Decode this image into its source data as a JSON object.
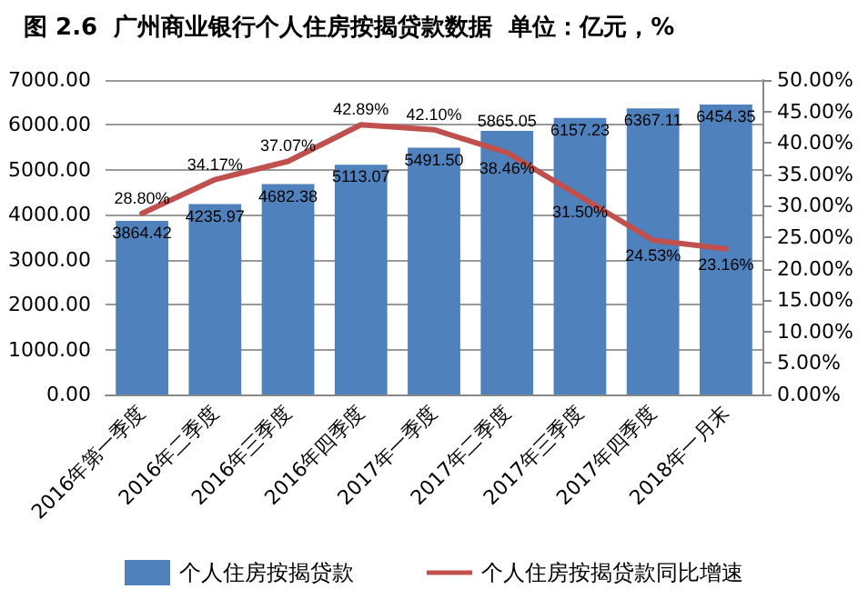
{
  "chart_data": {
    "type": "bar",
    "title": "图 2.6  广州商业银行个人住房按揭贷款数据  单位：亿元，%",
    "categories": [
      "2016年第一季度",
      "2016年二季度",
      "2016年三季度",
      "2016年四季度",
      "2017年一季度",
      "2017年二季度",
      "2017年三季度",
      "2017年四季度",
      "2018年一月末"
    ],
    "series": [
      {
        "name": "个人住房按揭贷款",
        "color": "#4f81bd",
        "values": [
          3864.42,
          4235.97,
          4682.38,
          5113.07,
          5491.5,
          5865.05,
          6157.23,
          6367.11,
          6454.35
        ],
        "value_labels": [
          "3864.42",
          "4235.97",
          "4682.38",
          "5113.07",
          "5491.50",
          "5865.05",
          "6157.23",
          "6367.11",
          "6454.35"
        ]
      },
      {
        "name": "个人住房按揭贷款同比增速",
        "type": "line",
        "axis": "y2",
        "color": "#c0504d",
        "values": [
          28.8,
          34.17,
          37.07,
          42.89,
          42.1,
          38.46,
          31.5,
          24.53,
          23.16
        ],
        "value_labels": [
          "28.80%",
          "34.17%",
          "37.07%",
          "42.89%",
          "42.10%",
          "38.46%",
          "31.50%",
          "24.53%",
          "23.16%"
        ]
      }
    ],
    "ylim": [
      0,
      7000
    ],
    "yticks": [
      {
        "value": 0,
        "label": "0.00"
      },
      {
        "value": 1000,
        "label": "1000.00"
      },
      {
        "value": 2000,
        "label": "2000.00"
      },
      {
        "value": 3000,
        "label": "3000.00"
      },
      {
        "value": 4000,
        "label": "4000.00"
      },
      {
        "value": 5000,
        "label": "5000.00"
      },
      {
        "value": 6000,
        "label": "6000.00"
      },
      {
        "value": 7000,
        "label": "7000.00"
      }
    ],
    "y2lim": [
      0,
      50
    ],
    "y2ticks": [
      {
        "value": 0,
        "label": "0.00%"
      },
      {
        "value": 5,
        "label": "5.00%"
      },
      {
        "value": 10,
        "label": "10.00%"
      },
      {
        "value": 15,
        "label": "15.00%"
      },
      {
        "value": 20,
        "label": "20.00%"
      },
      {
        "value": 25,
        "label": "25.00%"
      },
      {
        "value": 30,
        "label": "30.00%"
      },
      {
        "value": 35,
        "label": "35.00%"
      },
      {
        "value": 40,
        "label": "40.00%"
      },
      {
        "value": 45,
        "label": "45.00%"
      },
      {
        "value": 50,
        "label": "50.00%"
      }
    ],
    "grid": "y",
    "legend": "bottom",
    "marker": "none",
    "line_style": "solid"
  }
}
